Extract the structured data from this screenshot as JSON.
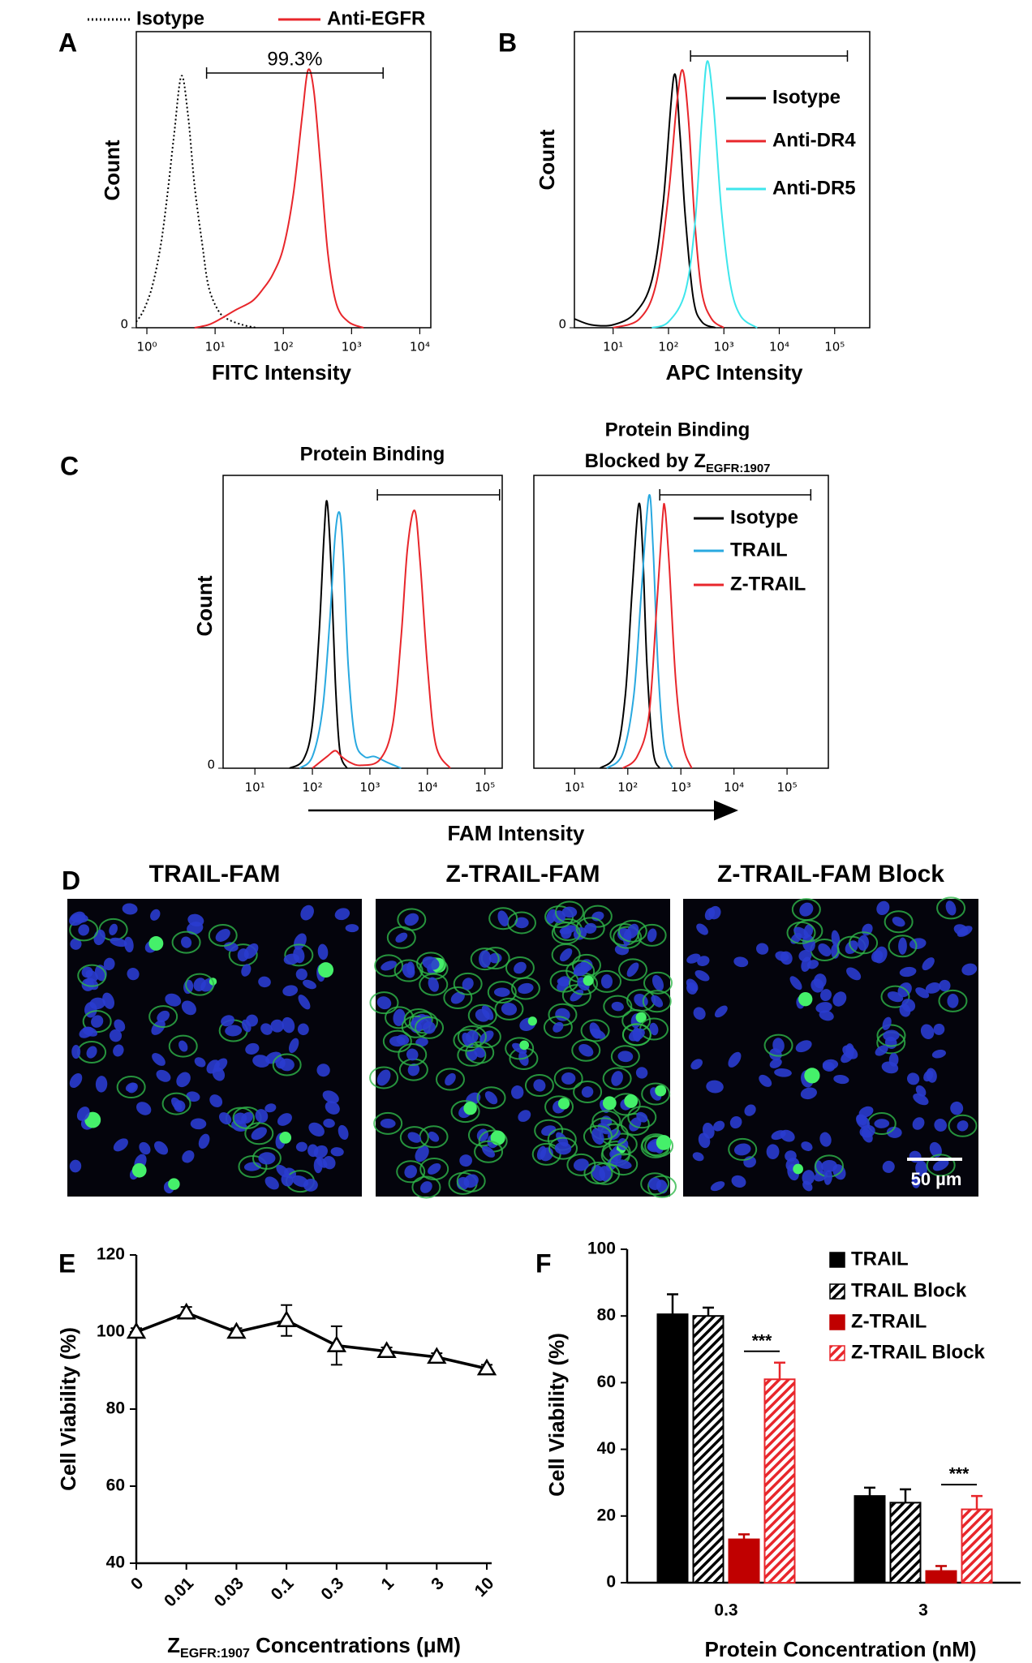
{
  "chart_data": [
    {
      "type": "line",
      "panel": "A",
      "xscale": "log",
      "xlabel": "FITC Intensity",
      "ylabel": "Count",
      "xlim": [
        0.7,
        14500
      ],
      "ylim": [
        0,
        100
      ],
      "xticks": [
        {
          "value": 1,
          "label": "10⁰"
        },
        {
          "value": 10,
          "label": "10¹"
        },
        {
          "value": 100,
          "label": "10²"
        },
        {
          "value": 1000,
          "label": "10³"
        },
        {
          "value": 10000,
          "label": "10⁴"
        }
      ],
      "yticks": [
        0
      ],
      "legend": "top",
      "gate": [
        7.5,
        2900
      ],
      "gate_label": "99.3%",
      "series": [
        {
          "name": "Isotype",
          "color": "#000000",
          "dash": true,
          "x": [
            0.7,
            0.9,
            1.2,
            1.6,
            2,
            2.5,
            3.2,
            4,
            5,
            6.5,
            8,
            11,
            15,
            25,
            40
          ],
          "values": [
            2,
            6,
            14,
            28,
            45,
            65,
            85,
            72,
            48,
            28,
            14,
            6,
            3,
            1,
            0
          ]
        },
        {
          "name": "Anti-EGFR",
          "color": "#e8262b",
          "x": [
            5,
            8,
            12,
            20,
            35,
            50,
            70,
            100,
            140,
            190,
            230,
            280,
            350,
            450,
            600,
            900,
            1500
          ],
          "values": [
            0,
            1,
            3,
            6,
            9,
            13,
            18,
            27,
            45,
            72,
            87,
            80,
            55,
            25,
            8,
            2,
            0
          ]
        }
      ]
    },
    {
      "type": "line",
      "panel": "B",
      "xscale": "log",
      "xlabel": "APC Intensity",
      "ylabel": "Count",
      "xlim": [
        2,
        430000
      ],
      "ylim": [
        0,
        100
      ],
      "xticks": [
        {
          "value": 10,
          "label": "10¹"
        },
        {
          "value": 100,
          "label": "10²"
        },
        {
          "value": 1000,
          "label": "10³"
        },
        {
          "value": 10000,
          "label": "10⁴"
        },
        {
          "value": 100000,
          "label": "10⁵"
        }
      ],
      "yticks": [
        0
      ],
      "legend": "upper right",
      "gate": [
        250,
        170000
      ],
      "series": [
        {
          "name": "Isotype",
          "color": "#000000",
          "x": [
            2,
            4,
            10,
            25,
            50,
            80,
            125,
            160,
            200,
            280,
            400,
            700
          ],
          "values": [
            3,
            1,
            1,
            5,
            16,
            42,
            85,
            66,
            38,
            10,
            2,
            0
          ]
        },
        {
          "name": "Anti-DR4",
          "color": "#e8262b",
          "x": [
            10,
            30,
            60,
            100,
            140,
            180,
            230,
            300,
            400,
            600,
            1000
          ],
          "values": [
            0,
            3,
            15,
            45,
            75,
            87,
            70,
            35,
            12,
            3,
            0
          ]
        },
        {
          "name": "Anti-DR5",
          "color": "#3ee6ec",
          "x": [
            50,
            100,
            200,
            300,
            400,
            500,
            650,
            900,
            1300,
            2000,
            4000
          ],
          "values": [
            0,
            2,
            12,
            35,
            70,
            90,
            75,
            40,
            15,
            4,
            0
          ]
        }
      ]
    },
    {
      "type": "line",
      "panel": "C",
      "xscale": "log",
      "title": "Protein Binding",
      "xlabel": "FAM Intensity",
      "ylabel": "Count",
      "xlim": [
        2.8,
        200000
      ],
      "ylim": [
        0,
        100
      ],
      "xticks": [
        {
          "value": 10,
          "label": "10¹"
        },
        {
          "value": 100,
          "label": "10²"
        },
        {
          "value": 1000,
          "label": "10³"
        },
        {
          "value": 10000,
          "label": "10⁴"
        },
        {
          "value": 100000,
          "label": "10⁵"
        }
      ],
      "yticks": [
        0
      ],
      "gate": [
        1350,
        180000
      ],
      "series": [
        {
          "color": "#000000",
          "x": [
            40,
            70,
            100,
            130,
            160,
            180,
            210,
            250,
            300,
            400
          ],
          "values": [
            0,
            3,
            15,
            45,
            80,
            91,
            70,
            30,
            6,
            0
          ]
        },
        {
          "color": "#29a9e0",
          "x": [
            60,
            100,
            150,
            200,
            250,
            300,
            350,
            420,
            550,
            800,
            1200,
            2000,
            3500
          ],
          "values": [
            0,
            4,
            20,
            50,
            80,
            87,
            70,
            35,
            10,
            4,
            4,
            2,
            0
          ]
        },
        {
          "color": "#e8262b",
          "x": [
            100,
            180,
            250,
            320,
            450,
            700,
            1500,
            2500,
            3500,
            4500,
            6000,
            7500,
            10000,
            14000,
            25000
          ],
          "values": [
            0,
            4,
            6,
            4,
            2,
            1,
            3,
            15,
            45,
            75,
            88,
            70,
            35,
            8,
            0
          ]
        }
      ]
    },
    {
      "type": "line",
      "xscale": "log",
      "title": "Protein Binding",
      "title2": [
        "Blocked by Z",
        "EGFR:1907"
      ],
      "xlim": [
        1.7,
        600000
      ],
      "ylim": [
        0,
        100
      ],
      "xticks": [
        {
          "value": 10,
          "label": "10¹"
        },
        {
          "value": 100,
          "label": "10²"
        },
        {
          "value": 1000,
          "label": "10³"
        },
        {
          "value": 10000,
          "label": "10⁴"
        },
        {
          "value": 100000,
          "label": "10⁵"
        }
      ],
      "legend": "upper right",
      "gate": [
        400,
        280000
      ],
      "series": [
        {
          "name": "Isotype",
          "color": "#000000",
          "x": [
            30,
            60,
            90,
            120,
            160,
            190,
            230,
            300,
            400
          ],
          "values": [
            0,
            5,
            25,
            60,
            90,
            75,
            35,
            6,
            0
          ]
        },
        {
          "name": "TRAIL",
          "color": "#29a9e0",
          "x": [
            40,
            80,
            130,
            180,
            250,
            300,
            370,
            480,
            700
          ],
          "values": [
            0,
            5,
            25,
            60,
            93,
            75,
            35,
            8,
            0
          ]
        },
        {
          "name": "Z-TRAIL",
          "color": "#e8262b",
          "x": [
            80,
            150,
            250,
            350,
            450,
            500,
            600,
            800,
            1100,
            1600
          ],
          "values": [
            0,
            4,
            18,
            55,
            85,
            89,
            70,
            30,
            8,
            0
          ]
        }
      ]
    },
    {
      "type": "image",
      "panel": "D",
      "images": [
        "TRAIL-FAM",
        "Z-TRAIL-FAM",
        "Z-TRAIL-FAM Block"
      ],
      "scale_bar": "50 µm"
    },
    {
      "type": "line",
      "panel": "E",
      "ylabel": "Cell Viability (%)",
      "xlabel": [
        "Z",
        "EGFR:1907",
        " Concentrations (μM)"
      ],
      "categories": [
        "0",
        "0.01",
        "0.03",
        "0.1",
        "0.3",
        "1",
        "3",
        "10"
      ],
      "values": [
        100,
        105,
        100,
        103,
        96.5,
        95,
        93.5,
        90.5
      ],
      "errors": [
        1,
        1.5,
        1,
        4,
        5,
        1,
        1,
        1
      ],
      "color": "#000000",
      "ylim": [
        40,
        120
      ],
      "yticks": [
        40,
        60,
        80,
        100,
        120
      ]
    },
    {
      "type": "bar",
      "panel": "F",
      "ylabel": "Cell Viability (%)",
      "xlabel": "Protein Concentration (nM)",
      "categories": [
        "0.3",
        "3"
      ],
      "ylim": [
        0,
        100
      ],
      "yticks": [
        0,
        20,
        40,
        60,
        80,
        100
      ],
      "legend": "upper right",
      "series": [
        {
          "name": "TRAIL",
          "color": "#000000",
          "values": [
            80.5,
            26
          ],
          "errors": [
            6,
            2.5
          ]
        },
        {
          "name": "TRAIL Block",
          "color": "#000000",
          "hatch": true,
          "values": [
            80,
            24
          ],
          "errors": [
            2.5,
            4
          ]
        },
        {
          "name": "Z-TRAIL",
          "color": "#c00000",
          "values": [
            13,
            3.5
          ],
          "errors": [
            1.5,
            1.5
          ]
        },
        {
          "name": "Z-TRAIL Block",
          "color": "#e8262b",
          "hatch": true,
          "values": [
            61,
            22
          ],
          "errors": [
            5,
            4
          ]
        }
      ],
      "annotations": [
        {
          "text": "***",
          "category": 0,
          "series": [
            2,
            3
          ]
        },
        {
          "text": "***",
          "category": 1,
          "series": [
            2,
            3
          ]
        }
      ]
    }
  ]
}
